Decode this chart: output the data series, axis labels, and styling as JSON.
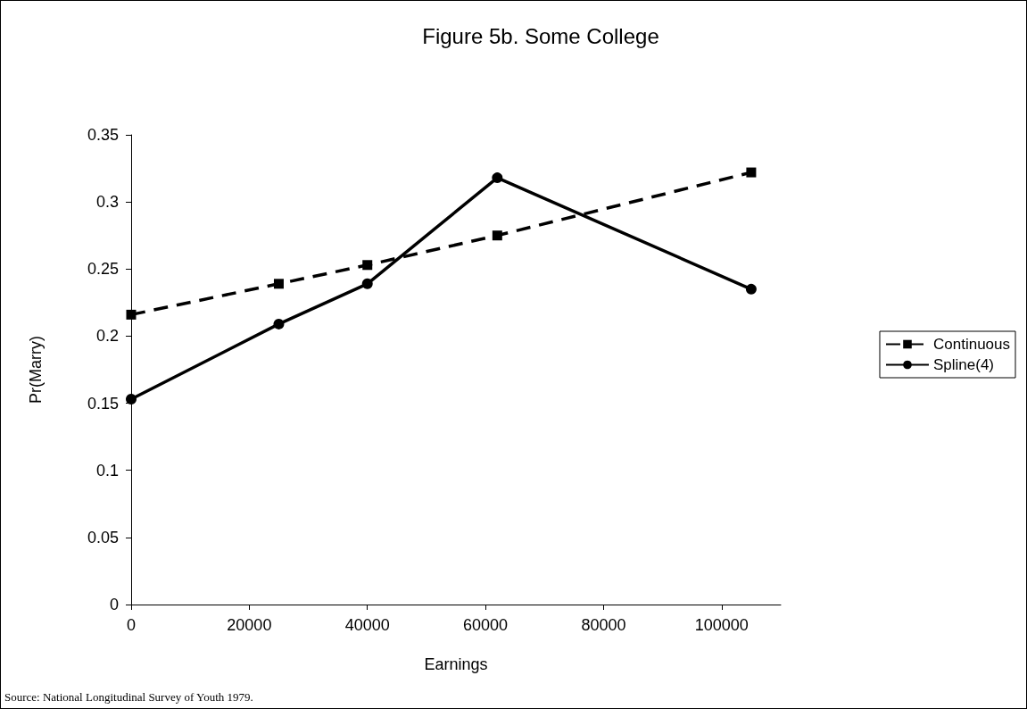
{
  "chart_data": {
    "type": "line",
    "title": "Figure 5b. Some College",
    "xlabel": "Earnings",
    "ylabel": "Pr(Marry)",
    "x": [
      0,
      25000,
      40000,
      62000,
      105000
    ],
    "series": [
      {
        "name": "Continuous",
        "color": "#000000",
        "values": [
          0.216,
          0.239,
          0.253,
          0.275,
          0.322
        ],
        "marker": "square",
        "line_style": "dashed"
      },
      {
        "name": "Spline(4)",
        "color": "#000000",
        "values": [
          0.153,
          0.209,
          0.239,
          0.318,
          0.235
        ],
        "marker": "circle",
        "line_style": "solid"
      }
    ],
    "xlim": [
      0,
      110000
    ],
    "xticks": [
      0,
      20000,
      40000,
      60000,
      80000,
      100000
    ],
    "ylim": [
      0,
      0.35
    ],
    "yticks": [
      0,
      0.05,
      0.1,
      0.15,
      0.2,
      0.25,
      0.3,
      0.35
    ],
    "grid": false,
    "legend": "right",
    "annotations": [
      "Source: National Longitudinal Survey of Youth 1979."
    ]
  }
}
